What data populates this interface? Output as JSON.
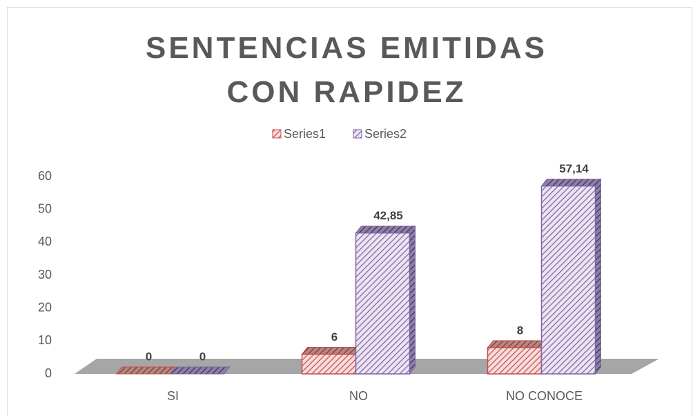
{
  "chart_data": {
    "type": "bar3d",
    "title": "SENTENCIAS EMITIDAS CON RAPIDEZ",
    "categories": [
      "SI",
      "NO",
      "NO CONOCE"
    ],
    "series": [
      {
        "name": "Series1",
        "color": "#c0504d",
        "values": [
          0,
          6,
          8
        ]
      },
      {
        "name": "Series2",
        "color": "#8064a2",
        "values": [
          0,
          42.85,
          57.14
        ],
        "value_labels": [
          "0",
          "42,85",
          "57,14"
        ]
      }
    ],
    "ylim": [
      0,
      60
    ],
    "yticks": [
      0,
      10,
      20,
      30,
      40,
      50,
      60
    ],
    "legend": "top",
    "grid": false
  }
}
